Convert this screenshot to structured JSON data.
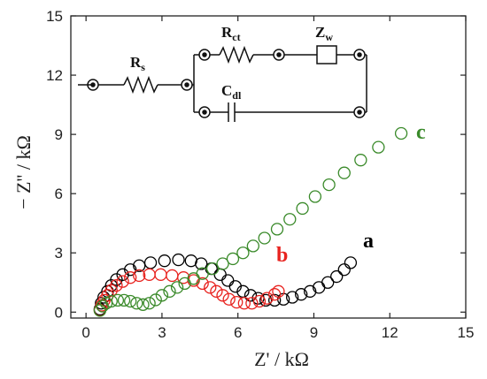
{
  "chart_data": {
    "type": "scatter",
    "xlabel": "Z' / kΩ",
    "ylabel": "− Z'' / kΩ",
    "xlim": [
      -0.6,
      15
    ],
    "ylim": [
      -0.3,
      15
    ],
    "x_ticks": [
      "0",
      "3",
      "6",
      "9",
      "12",
      "15"
    ],
    "y_ticks": [
      "0",
      "3",
      "6",
      "9",
      "12",
      "15"
    ],
    "marker": "open-circle",
    "series": [
      {
        "name": "a",
        "color": "#000000",
        "points": [
          [
            0.55,
            0.15
          ],
          [
            0.6,
            0.45
          ],
          [
            0.7,
            0.75
          ],
          [
            0.85,
            1.05
          ],
          [
            1.0,
            1.35
          ],
          [
            1.2,
            1.65
          ],
          [
            1.45,
            1.9
          ],
          [
            1.75,
            2.15
          ],
          [
            2.1,
            2.35
          ],
          [
            2.55,
            2.5
          ],
          [
            3.1,
            2.6
          ],
          [
            3.65,
            2.65
          ],
          [
            4.15,
            2.6
          ],
          [
            4.55,
            2.45
          ],
          [
            4.95,
            2.2
          ],
          [
            5.3,
            1.9
          ],
          [
            5.6,
            1.6
          ],
          [
            5.9,
            1.3
          ],
          [
            6.2,
            1.05
          ],
          [
            6.5,
            0.85
          ],
          [
            6.8,
            0.7
          ],
          [
            7.1,
            0.6
          ],
          [
            7.45,
            0.6
          ],
          [
            7.8,
            0.65
          ],
          [
            8.15,
            0.75
          ],
          [
            8.5,
            0.9
          ],
          [
            8.85,
            1.05
          ],
          [
            9.2,
            1.25
          ],
          [
            9.55,
            1.5
          ],
          [
            9.9,
            1.8
          ],
          [
            10.2,
            2.15
          ],
          [
            10.45,
            2.5
          ]
        ]
      },
      {
        "name": "b",
        "color": "#e8231f",
        "points": [
          [
            0.55,
            0.1
          ],
          [
            0.62,
            0.35
          ],
          [
            0.72,
            0.6
          ],
          [
            0.85,
            0.85
          ],
          [
            1.0,
            1.1
          ],
          [
            1.2,
            1.35
          ],
          [
            1.45,
            1.55
          ],
          [
            1.75,
            1.75
          ],
          [
            2.1,
            1.85
          ],
          [
            2.5,
            1.9
          ],
          [
            2.95,
            1.9
          ],
          [
            3.4,
            1.85
          ],
          [
            3.85,
            1.75
          ],
          [
            4.25,
            1.6
          ],
          [
            4.6,
            1.45
          ],
          [
            4.9,
            1.25
          ],
          [
            5.15,
            1.05
          ],
          [
            5.4,
            0.85
          ],
          [
            5.65,
            0.65
          ],
          [
            5.95,
            0.5
          ],
          [
            6.25,
            0.45
          ],
          [
            6.55,
            0.45
          ],
          [
            6.85,
            0.55
          ],
          [
            7.15,
            0.7
          ],
          [
            7.45,
            0.9
          ],
          [
            7.6,
            1.05
          ]
        ]
      },
      {
        "name": "c",
        "color": "#3a8a2a",
        "points": [
          [
            0.55,
            0.08
          ],
          [
            0.65,
            0.3
          ],
          [
            0.8,
            0.45
          ],
          [
            1.0,
            0.55
          ],
          [
            1.25,
            0.6
          ],
          [
            1.5,
            0.6
          ],
          [
            1.75,
            0.55
          ],
          [
            2.0,
            0.45
          ],
          [
            2.25,
            0.38
          ],
          [
            2.5,
            0.45
          ],
          [
            2.75,
            0.62
          ],
          [
            3.0,
            0.85
          ],
          [
            3.3,
            1.05
          ],
          [
            3.6,
            1.25
          ],
          [
            3.9,
            1.45
          ],
          [
            4.25,
            1.7
          ],
          [
            4.6,
            1.95
          ],
          [
            5.0,
            2.2
          ],
          [
            5.4,
            2.45
          ],
          [
            5.8,
            2.7
          ],
          [
            6.2,
            3.0
          ],
          [
            6.6,
            3.35
          ],
          [
            7.05,
            3.75
          ],
          [
            7.55,
            4.2
          ],
          [
            8.05,
            4.7
          ],
          [
            8.55,
            5.25
          ],
          [
            9.05,
            5.85
          ],
          [
            9.6,
            6.45
          ],
          [
            10.2,
            7.05
          ],
          [
            10.85,
            7.7
          ],
          [
            11.55,
            8.35
          ],
          [
            12.45,
            9.05
          ]
        ]
      }
    ],
    "annotations": [
      "a",
      "b",
      "c"
    ]
  },
  "circuit": {
    "rs": "R",
    "rs_sub": "s",
    "rct": "R",
    "rct_sub": "ct",
    "zw": "Z",
    "zw_sub": "w",
    "cdl": "C",
    "cdl_sub": "dl"
  }
}
